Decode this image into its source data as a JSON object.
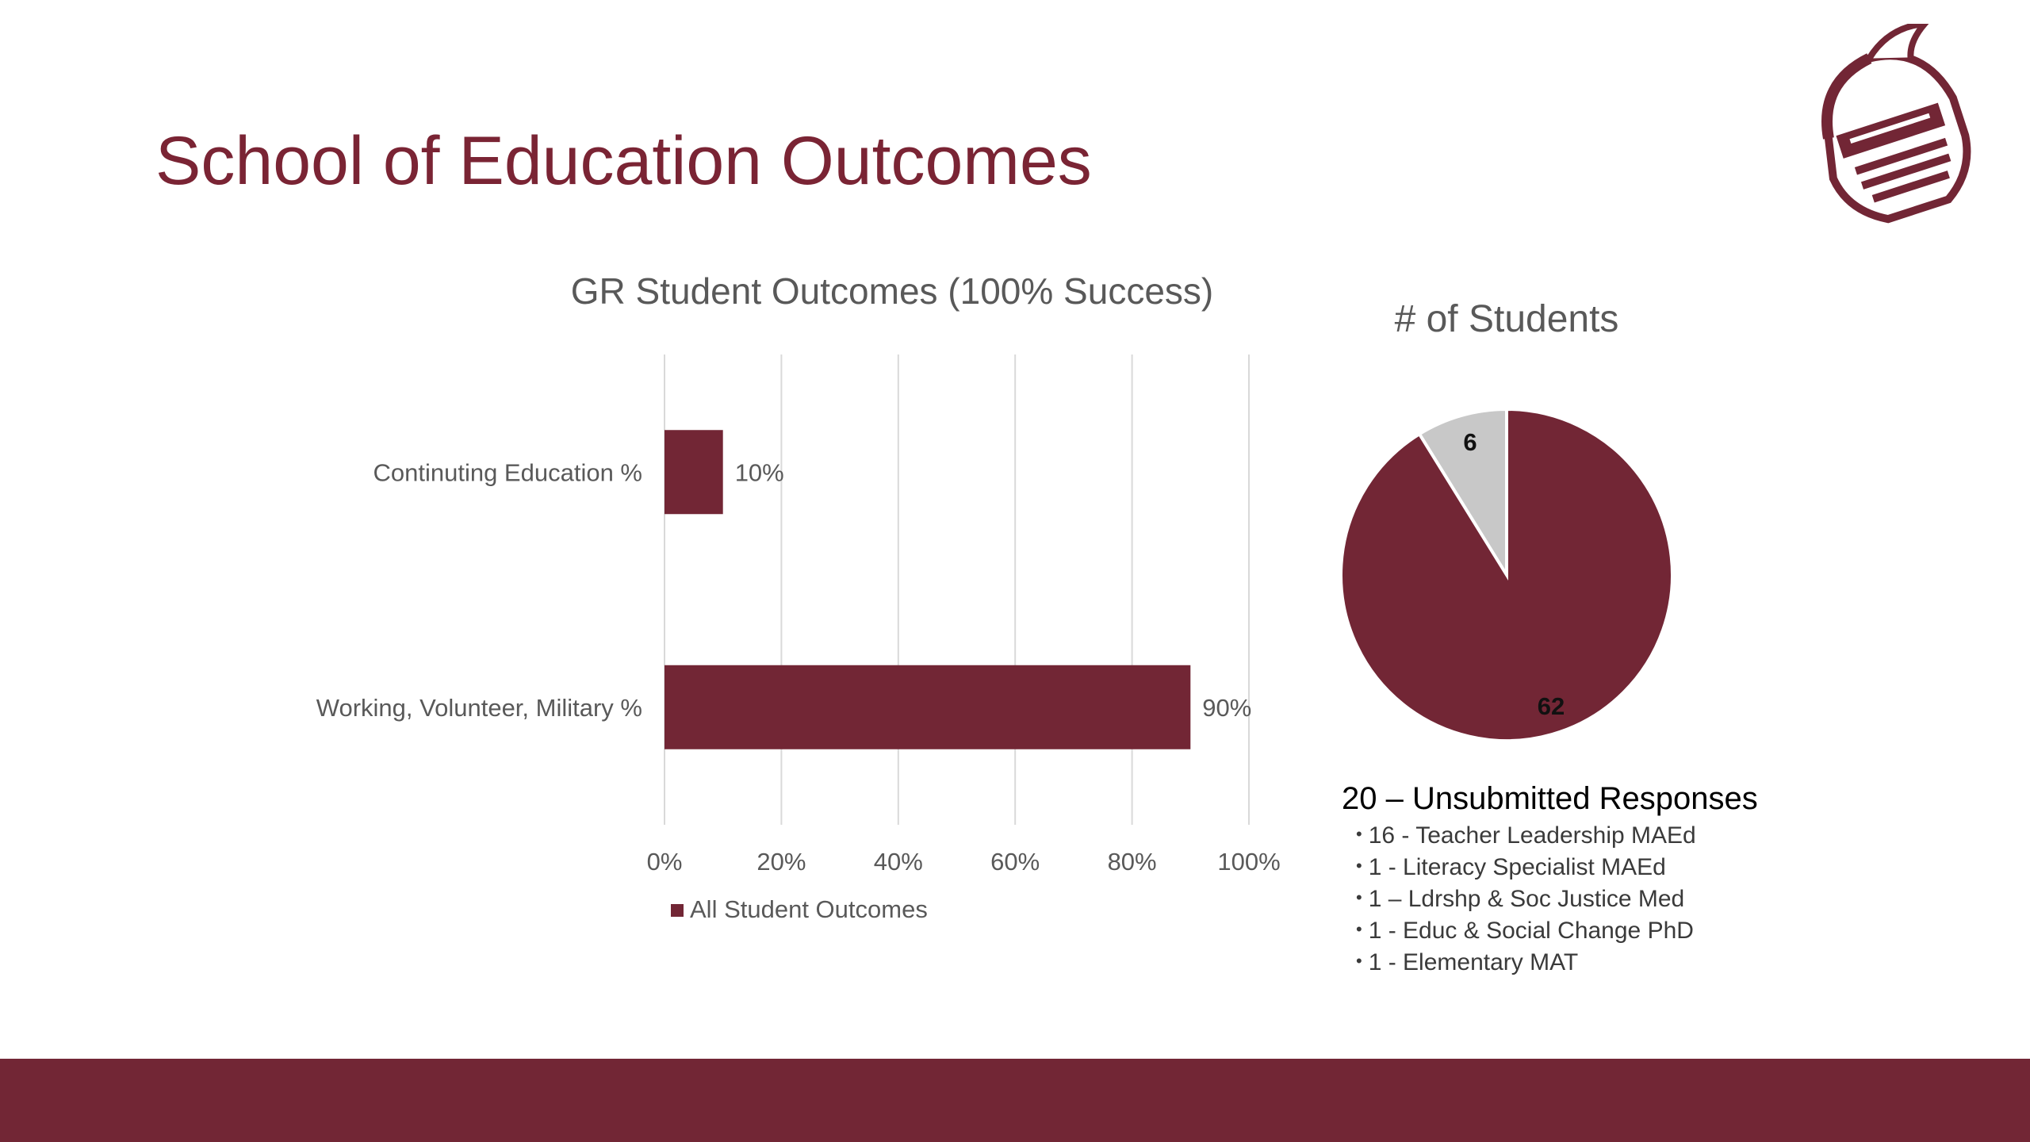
{
  "slide": {
    "title": "School of Education Outcomes"
  },
  "colors": {
    "maroon": "#722635",
    "grey_slice": "#c8c8c8",
    "title": "#7a2434"
  },
  "logo_icon": "knight-helmet-logo",
  "chart_data": [
    {
      "type": "bar",
      "orientation": "horizontal",
      "title": "GR Student Outcomes (100% Success)",
      "categories": [
        "Continuting Education %",
        "Working, Volunteer, Military %"
      ],
      "series": [
        {
          "name": "All Student Outcomes",
          "values": [
            0.1,
            0.9
          ],
          "labels": [
            "10%",
            "90%"
          ]
        }
      ],
      "xlim": [
        0,
        1
      ],
      "xticks": [
        "0%",
        "20%",
        "40%",
        "60%",
        "80%",
        "100%"
      ],
      "grid": true,
      "legend": "bottom"
    },
    {
      "type": "pie",
      "title": "# of Students",
      "slices": [
        {
          "value": 6,
          "label": "6",
          "color": "#c8c8c8"
        },
        {
          "value": 62,
          "label": "62",
          "color": "#722635"
        }
      ]
    }
  ],
  "notes": {
    "heading": "20 – Unsubmitted Responses",
    "items": [
      "16 - Teacher Leadership MAEd",
      "1 - Literacy Specialist MAEd",
      "1 – Ldrshp & Soc Justice Med",
      "1 - Educ & Social Change PhD",
      "1 - Elementary MAT"
    ]
  }
}
